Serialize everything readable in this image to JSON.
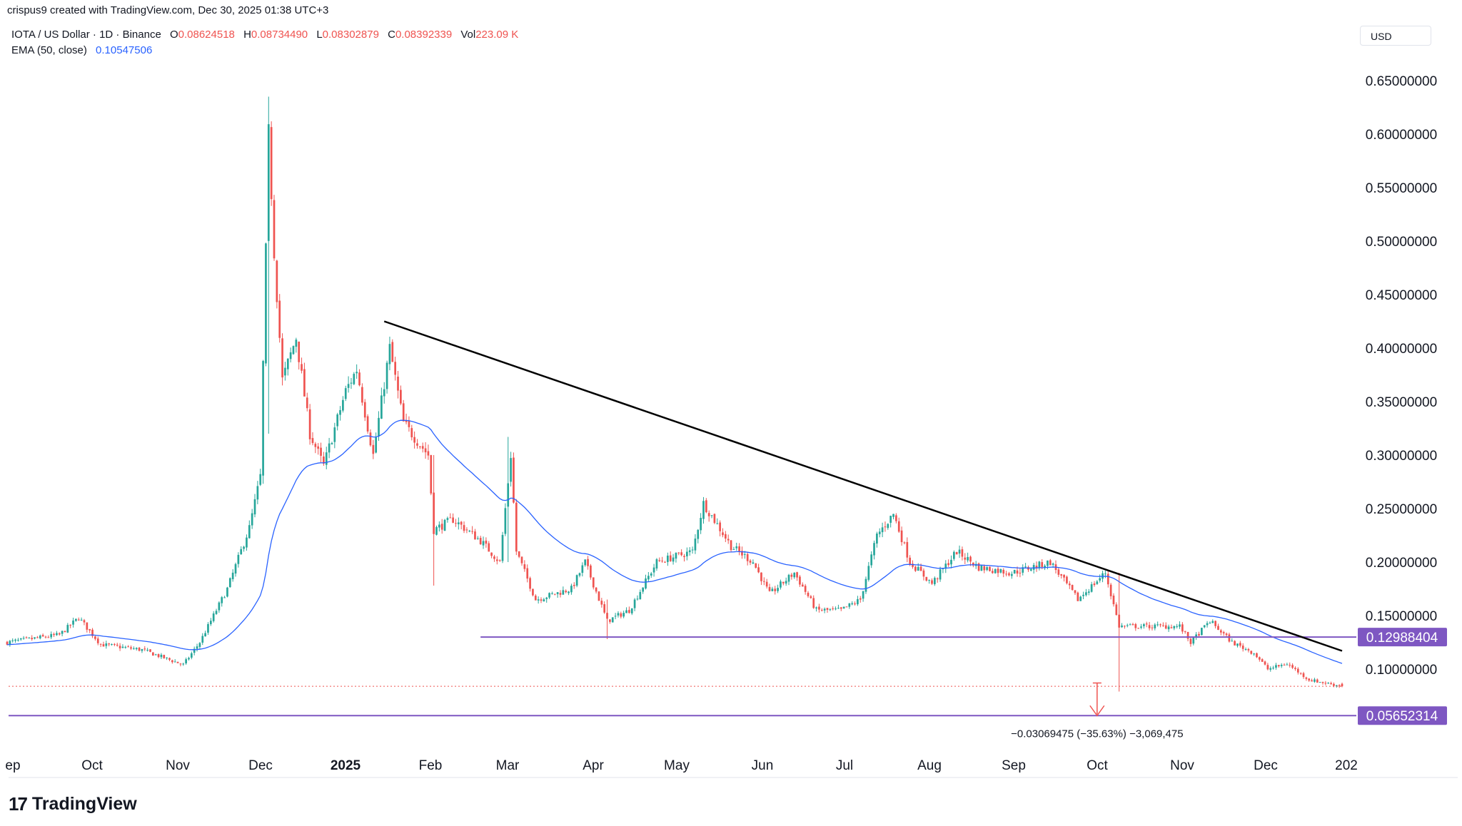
{
  "header": {
    "text": "crispus9 created with TradingView.com, Dec 30, 2025 01:38 UTC+3"
  },
  "legend": {
    "symbol": "IOTA / US Dollar · 1D · Binance",
    "o_label": "O",
    "o_value": "0.08624518",
    "h_label": "H",
    "h_value": "0.08734490",
    "l_label": "L",
    "l_value": "0.08302879",
    "c_label": "C",
    "c_value": "0.08392339",
    "vol_label": "Vol",
    "vol_value": "223.09 K",
    "ema_label": "EMA (50, close)",
    "ema_value": "0.10547506"
  },
  "currency": "USD",
  "brand": "TradingView",
  "colors": {
    "up": "#26a69a",
    "down": "#ef5350",
    "ema": "#2962ff",
    "level": "#7e57c2",
    "trend": "#000000",
    "last": "#ef5350"
  },
  "chart_data": {
    "type": "candlestick",
    "title": "IOTA / US Dollar · 1D · Binance",
    "x_ticks": [
      "ep",
      "Oct",
      "Nov",
      "Dec",
      "2025",
      "Feb",
      "Mar",
      "Apr",
      "May",
      "Jun",
      "Jul",
      "Aug",
      "Sep",
      "Oct",
      "Nov",
      "Dec",
      "202"
    ],
    "y_ticks": [
      "0.65000000",
      "0.60000000",
      "0.55000000",
      "0.50000000",
      "0.45000000",
      "0.40000000",
      "0.35000000",
      "0.30000000",
      "0.25000000",
      "0.20000000",
      "0.15000000",
      "0.10000000"
    ],
    "y_tick_values": [
      0.65,
      0.6,
      0.55,
      0.5,
      0.45,
      0.4,
      0.35,
      0.3,
      0.25,
      0.2,
      0.15,
      0.1
    ],
    "ylim": [
      0.045,
      0.68
    ],
    "date_range": [
      "2024-09-01",
      "2025-12-30"
    ],
    "price_anchors": [
      [
        "2024-09-01",
        0.125
      ],
      [
        "2024-09-20",
        0.132
      ],
      [
        "2024-09-27",
        0.148
      ],
      [
        "2024-10-05",
        0.123
      ],
      [
        "2024-10-20",
        0.118
      ],
      [
        "2024-11-04",
        0.104
      ],
      [
        "2024-11-10",
        0.125
      ],
      [
        "2024-11-20",
        0.175
      ],
      [
        "2024-11-28",
        0.232
      ],
      [
        "2024-12-02",
        0.28
      ],
      [
        "2024-12-04",
        0.49
      ],
      [
        "2024-12-05",
        0.6
      ],
      [
        "2024-12-07",
        0.49
      ],
      [
        "2024-12-10",
        0.37
      ],
      [
        "2024-12-15",
        0.41
      ],
      [
        "2024-12-20",
        0.32
      ],
      [
        "2024-12-25",
        0.29
      ],
      [
        "2025-01-02",
        0.36
      ],
      [
        "2025-01-06",
        0.38
      ],
      [
        "2025-01-12",
        0.3
      ],
      [
        "2025-01-18",
        0.4
      ],
      [
        "2025-01-23",
        0.33
      ],
      [
        "2025-02-01",
        0.3
      ],
      [
        "2025-02-03",
        0.23
      ],
      [
        "2025-02-10",
        0.24
      ],
      [
        "2025-02-20",
        0.22
      ],
      [
        "2025-02-27",
        0.2
      ],
      [
        "2025-03-03",
        0.3
      ],
      [
        "2025-03-05",
        0.21
      ],
      [
        "2025-03-12",
        0.165
      ],
      [
        "2025-03-25",
        0.175
      ],
      [
        "2025-03-30",
        0.2
      ],
      [
        "2025-04-07",
        0.145
      ],
      [
        "2025-04-15",
        0.155
      ],
      [
        "2025-04-25",
        0.2
      ],
      [
        "2025-05-08",
        0.21
      ],
      [
        "2025-05-12",
        0.255
      ],
      [
        "2025-05-22",
        0.215
      ],
      [
        "2025-05-30",
        0.2
      ],
      [
        "2025-06-05",
        0.17
      ],
      [
        "2025-06-14",
        0.19
      ],
      [
        "2025-06-22",
        0.155
      ],
      [
        "2025-07-01",
        0.155
      ],
      [
        "2025-07-08",
        0.165
      ],
      [
        "2025-07-14",
        0.225
      ],
      [
        "2025-07-20",
        0.245
      ],
      [
        "2025-07-26",
        0.2
      ],
      [
        "2025-08-03",
        0.18
      ],
      [
        "2025-08-12",
        0.21
      ],
      [
        "2025-08-20",
        0.195
      ],
      [
        "2025-09-01",
        0.19
      ],
      [
        "2025-09-15",
        0.2
      ],
      [
        "2025-09-25",
        0.165
      ],
      [
        "2025-10-05",
        0.19
      ],
      [
        "2025-10-10",
        0.14
      ],
      [
        "2025-10-20",
        0.14
      ],
      [
        "2025-11-01",
        0.14
      ],
      [
        "2025-11-05",
        0.125
      ],
      [
        "2025-11-12",
        0.145
      ],
      [
        "2025-11-20",
        0.125
      ],
      [
        "2025-11-28",
        0.115
      ],
      [
        "2025-12-03",
        0.1
      ],
      [
        "2025-12-10",
        0.105
      ],
      [
        "2025-12-18",
        0.09
      ],
      [
        "2025-12-30",
        0.0839
      ]
    ],
    "spikes": [
      {
        "date": "2024-12-05",
        "high": 0.635,
        "low": 0.32
      },
      {
        "date": "2025-03-02",
        "high": 0.317,
        "low": 0.2
      },
      {
        "date": "2025-02-03",
        "high": 0.3,
        "low": 0.178
      },
      {
        "date": "2025-10-10",
        "high": 0.19,
        "low": 0.079
      },
      {
        "date": "2025-04-07",
        "high": 0.165,
        "low": 0.128
      }
    ],
    "ema": {
      "name": "EMA (50, close)",
      "period": 50,
      "last": 0.10547506
    },
    "last_price": 0.08392339,
    "levels": [
      {
        "label": "0.12988404",
        "value": 0.12988404,
        "from": "2025-02-20"
      },
      {
        "label": "0.05652314",
        "value": 0.05652314,
        "from": "2024-09-01"
      }
    ],
    "trendline": {
      "from": [
        "2025-01-16",
        0.425
      ],
      "to": [
        "2025-12-30",
        0.117
      ]
    },
    "measure": {
      "date": "2025-10-02",
      "from": 0.087,
      "to": 0.0565,
      "label": "−0.03069475 (−35.63%) −3,069,475"
    }
  }
}
